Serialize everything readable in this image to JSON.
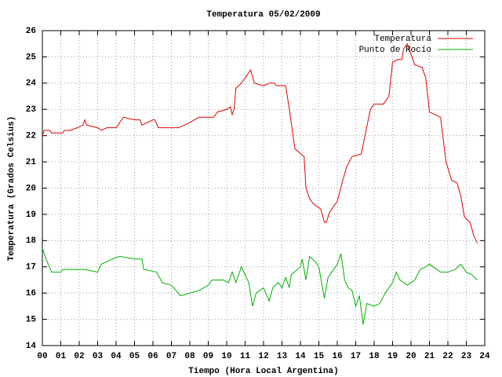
{
  "chart_data": {
    "type": "line",
    "title": "Temperatura 05/02/2009",
    "x_label": "Tiempo (Hora Local Argentina)",
    "y_label": "Temperatura (Grados Celsius)",
    "xlim": [
      0,
      24
    ],
    "ylim": [
      14,
      26
    ],
    "xticks": [
      {
        "value": 0,
        "label": "00"
      },
      {
        "value": 1,
        "label": "01"
      },
      {
        "value": 2,
        "label": "02"
      },
      {
        "value": 3,
        "label": "03"
      },
      {
        "value": 4,
        "label": "04"
      },
      {
        "value": 5,
        "label": "05"
      },
      {
        "value": 6,
        "label": "06"
      },
      {
        "value": 7,
        "label": "07"
      },
      {
        "value": 8,
        "label": "08"
      },
      {
        "value": 9,
        "label": "09"
      },
      10,
      11,
      12,
      13,
      14,
      15,
      16,
      17,
      18,
      19,
      20,
      21,
      22,
      23,
      24
    ],
    "yticks": [
      14,
      15,
      16,
      17,
      18,
      19,
      20,
      21,
      22,
      23,
      24,
      25,
      26
    ],
    "grid": true,
    "legend": "top right",
    "series": [
      {
        "name": "Temperatura",
        "color": "#e00000",
        "x": [
          0.0,
          0.1,
          0.4,
          0.5,
          1.1,
          1.2,
          1.5,
          1.9,
          2.2,
          2.3,
          2.4,
          3.0,
          3.2,
          3.5,
          4.0,
          4.2,
          4.4,
          5.0,
          5.3,
          5.4,
          5.7,
          6.0,
          6.1,
          6.3,
          7.4,
          8.0,
          8.5,
          9.3,
          9.5,
          10.0,
          10.2,
          10.3,
          10.4,
          10.5,
          10.8,
          11.1,
          11.3,
          11.5,
          12.0,
          12.3,
          12.6,
          12.7,
          13.2,
          13.4,
          13.7,
          14.2,
          14.3,
          14.5,
          14.7,
          15.1,
          15.3,
          15.4,
          15.6,
          16.0,
          16.3,
          16.5,
          16.8,
          17.3,
          17.5,
          17.8,
          18.0,
          18.5,
          18.8,
          19.0,
          19.3,
          19.5,
          19.6,
          19.8,
          20.0,
          20.2,
          20.6,
          20.8,
          21.0,
          21.3,
          21.6,
          21.9,
          22.2,
          22.5,
          22.7,
          22.9,
          23.2,
          23.4,
          23.6
        ],
        "values": [
          22.0,
          22.2,
          22.2,
          22.1,
          22.1,
          22.2,
          22.2,
          22.3,
          22.4,
          22.6,
          22.4,
          22.3,
          22.2,
          22.3,
          22.3,
          22.5,
          22.7,
          22.6,
          22.6,
          22.4,
          22.5,
          22.6,
          22.6,
          22.3,
          22.3,
          22.5,
          22.7,
          22.7,
          22.9,
          23.0,
          23.1,
          22.8,
          23.0,
          23.8,
          24.0,
          24.3,
          24.5,
          24.0,
          23.9,
          24.0,
          24.0,
          23.9,
          23.9,
          23.0,
          21.5,
          21.2,
          20.0,
          19.6,
          19.4,
          19.2,
          18.7,
          18.7,
          19.1,
          19.5,
          20.3,
          20.8,
          21.2,
          21.3,
          22.0,
          23.0,
          23.2,
          23.2,
          23.5,
          24.8,
          24.9,
          24.9,
          25.3,
          25.5,
          25.1,
          24.7,
          24.6,
          24.2,
          22.9,
          22.8,
          22.7,
          21.0,
          20.3,
          20.2,
          19.7,
          18.9,
          18.7,
          18.2,
          17.9
        ]
      },
      {
        "name": "Punto de Rocío",
        "color": "#00b000",
        "x": [
          0.0,
          0.2,
          0.5,
          1.0,
          1.1,
          2.0,
          2.3,
          3.0,
          3.2,
          3.8,
          4.2,
          5.0,
          5.4,
          5.5,
          6.2,
          6.5,
          7.0,
          7.5,
          8.5,
          9.0,
          9.2,
          9.8,
          10.1,
          10.3,
          10.5,
          10.8,
          11.0,
          11.2,
          11.4,
          11.6,
          12.0,
          12.3,
          12.5,
          12.8,
          13.0,
          13.2,
          13.4,
          13.5,
          14.0,
          14.1,
          14.3,
          14.5,
          14.8,
          15.0,
          15.3,
          15.5,
          16.0,
          16.2,
          16.4,
          16.6,
          16.8,
          17.0,
          17.2,
          17.4,
          17.6,
          18.0,
          18.3,
          18.6,
          19.0,
          19.2,
          19.4,
          19.8,
          20.2,
          20.5,
          20.8,
          21.0,
          21.4,
          21.6,
          22.0,
          22.4,
          22.7,
          23.0,
          23.3,
          23.6
        ],
        "values": [
          17.7,
          17.3,
          16.8,
          16.8,
          16.9,
          16.9,
          16.9,
          16.8,
          17.1,
          17.3,
          17.4,
          17.3,
          17.3,
          16.9,
          16.8,
          16.4,
          16.3,
          15.9,
          16.1,
          16.3,
          16.5,
          16.5,
          16.4,
          16.8,
          16.4,
          17.0,
          16.7,
          16.4,
          15.5,
          16.0,
          16.2,
          15.7,
          16.2,
          16.4,
          16.2,
          16.6,
          16.2,
          16.7,
          17.0,
          17.3,
          16.5,
          17.4,
          17.2,
          17.0,
          15.8,
          16.6,
          17.1,
          17.5,
          16.5,
          16.2,
          16.1,
          15.5,
          15.9,
          14.8,
          15.6,
          15.5,
          15.6,
          16.0,
          16.4,
          16.8,
          16.5,
          16.3,
          16.5,
          16.9,
          17.0,
          17.1,
          16.9,
          16.8,
          16.8,
          16.9,
          17.1,
          16.8,
          16.7,
          16.5
        ]
      }
    ]
  }
}
